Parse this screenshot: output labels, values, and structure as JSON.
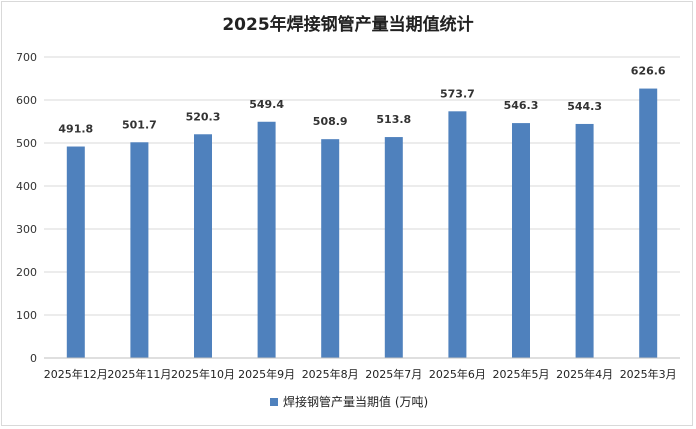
{
  "chart_data": {
    "type": "bar",
    "title": "2025年焊接钢管产量当期值统计",
    "categories": [
      "2025年12月",
      "2025年11月",
      "2025年10月",
      "2025年9月",
      "2025年8月",
      "2025年7月",
      "2025年6月",
      "2025年5月",
      "2025年4月",
      "2025年3月"
    ],
    "series": [
      {
        "name": "焊接钢管产量当期值 (万吨)",
        "values": [
          491.8,
          501.7,
          520.3,
          549.4,
          508.9,
          513.8,
          573.7,
          546.3,
          544.3,
          626.6
        ],
        "color": "#4f81bd"
      }
    ],
    "data_labels": [
      "491.8",
      "501.7",
      "520.3",
      "549.4",
      "508.9",
      "513.8",
      "573.7",
      "546.3",
      "544.3",
      "626.6"
    ],
    "yticks": [
      "0",
      "100",
      "200",
      "300",
      "400",
      "500",
      "600",
      "700"
    ],
    "ylim": [
      0,
      700
    ],
    "xlabel": "",
    "ylabel": "",
    "grid": true,
    "legend": "bottom"
  }
}
